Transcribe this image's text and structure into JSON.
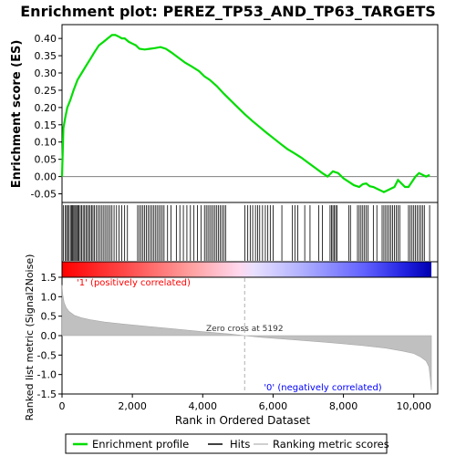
{
  "chart_data": {
    "type": "line",
    "title": "Enrichment plot: PEREZ_TP53_AND_TP63_TARGETS",
    "top_panel": {
      "ylabel": "Enrichment score (ES)",
      "ylim": [
        -0.075,
        0.44
      ],
      "yticks": [
        -0.05,
        0.0,
        0.05,
        0.1,
        0.15,
        0.2,
        0.25,
        0.3,
        0.35,
        0.4
      ],
      "ytick_labels": [
        "-0.05",
        "0.00",
        "0.05",
        "0.10",
        "0.15",
        "0.20",
        "0.25",
        "0.30",
        "0.35",
        "0.40"
      ],
      "series": [
        {
          "name": "Enrichment profile",
          "color": "#00dd00",
          "x": [
            0,
            40,
            90,
            150,
            230,
            330,
            440,
            560,
            680,
            800,
            920,
            1050,
            1180,
            1300,
            1420,
            1520,
            1620,
            1700,
            1780,
            1900,
            2000,
            2100,
            2200,
            2350,
            2500,
            2650,
            2800,
            2950,
            3100,
            3300,
            3500,
            3700,
            3900,
            4050,
            4200,
            4400,
            4600,
            4800,
            5000,
            5200,
            5400,
            5600,
            5800,
            6000,
            6200,
            6400,
            6600,
            6800,
            7000,
            7200,
            7400,
            7550,
            7700,
            7850,
            8000,
            8150,
            8300,
            8450,
            8550,
            8650,
            8750,
            8850,
            8950,
            9050,
            9150,
            9250,
            9350,
            9450,
            9550,
            9650,
            9750,
            9850,
            9950,
            10050,
            10150,
            10250,
            10350,
            10450
          ],
          "y": [
            0.0,
            0.14,
            0.17,
            0.2,
            0.22,
            0.25,
            0.28,
            0.3,
            0.32,
            0.34,
            0.36,
            0.38,
            0.39,
            0.4,
            0.41,
            0.41,
            0.405,
            0.4,
            0.4,
            0.39,
            0.385,
            0.38,
            0.37,
            0.368,
            0.37,
            0.372,
            0.375,
            0.37,
            0.36,
            0.345,
            0.33,
            0.318,
            0.305,
            0.29,
            0.28,
            0.262,
            0.24,
            0.22,
            0.2,
            0.18,
            0.162,
            0.145,
            0.128,
            0.112,
            0.096,
            0.08,
            0.068,
            0.055,
            0.04,
            0.025,
            0.01,
            0.0,
            0.015,
            0.01,
            -0.005,
            -0.015,
            -0.025,
            -0.03,
            -0.022,
            -0.02,
            -0.028,
            -0.03,
            -0.035,
            -0.04,
            -0.045,
            -0.04,
            -0.035,
            -0.03,
            -0.01,
            -0.02,
            -0.03,
            -0.03,
            -0.015,
            0.0,
            0.01,
            0.005,
            0.0,
            0.005
          ]
        }
      ],
      "baseline_y": 0.0
    },
    "hits": [
      40,
      90,
      130,
      160,
      200,
      240,
      270,
      300,
      330,
      360,
      390,
      420,
      450,
      480,
      520,
      560,
      600,
      640,
      680,
      720,
      760,
      800,
      840,
      880,
      920,
      970,
      1020,
      1070,
      1120,
      1170,
      1220,
      1270,
      1320,
      1370,
      1420,
      1480,
      1550,
      1620,
      1700,
      1780,
      1860,
      2150,
      2200,
      2250,
      2300,
      2350,
      2400,
      2450,
      2500,
      2550,
      2600,
      2650,
      2700,
      2750,
      2800,
      2850,
      2900,
      3000,
      3100,
      3250,
      3350,
      3450,
      3550,
      3650,
      3750,
      3850,
      3950,
      4050,
      4100,
      4150,
      4200,
      4250,
      4300,
      4350,
      4400,
      4450,
      4500,
      4550,
      4600,
      4650,
      5200,
      5280,
      5350,
      5420,
      5500,
      5560,
      5620,
      5700,
      5780,
      5850,
      5920,
      6000,
      6250,
      6550,
      6620,
      6700,
      6900,
      7050,
      7300,
      7400,
      7620,
      7660,
      7700,
      7740,
      7780,
      7820,
      8150,
      8200,
      8400,
      8450,
      8500,
      8550,
      8600,
      8650,
      8700,
      8850,
      8950,
      9100,
      9150,
      9200,
      9250,
      9300,
      9350,
      9400,
      9450,
      9500,
      9550,
      9600,
      9850,
      9900,
      9950,
      10000,
      10050,
      10100,
      10150,
      10200,
      10250,
      10300,
      10450
    ],
    "heatmap": {
      "labels": [
        "'1' (positively correlated)",
        "'0' (negatively correlated)"
      ],
      "label_colors": [
        "#ff0000",
        "#0000ff"
      ]
    },
    "bottom_panel": {
      "ylabel": "Ranked list metric (Signal2Noise)",
      "xlabel": "Rank in Ordered Dataset",
      "ylim": [
        -1.5,
        1.5
      ],
      "yticks": [
        -1.5,
        -1.0,
        -0.5,
        0.0,
        0.5,
        1.0,
        1.5
      ],
      "ytick_labels": [
        "-1.5",
        "-1.0",
        "-0.5",
        "0.0",
        "0.5",
        "1.0",
        "1.5"
      ],
      "xlim": [
        0,
        10500
      ],
      "xticks": [
        0,
        2000,
        4000,
        6000,
        8000,
        10000
      ],
      "xtick_labels": [
        "0",
        "2,000",
        "4,000",
        "6,000",
        "8,000",
        "10,000"
      ],
      "metric_x": [
        0,
        20,
        60,
        120,
        200,
        350,
        550,
        800,
        1200,
        1800,
        2500,
        3200,
        4000,
        4800,
        5192,
        5600,
        6500,
        7500,
        8500,
        9200,
        9700,
        10000,
        10200,
        10350,
        10430,
        10470,
        10500
      ],
      "metric_y": [
        1.3,
        1.05,
        0.85,
        0.72,
        0.62,
        0.52,
        0.46,
        0.41,
        0.35,
        0.29,
        0.23,
        0.17,
        0.1,
        0.04,
        0.0,
        -0.04,
        -0.1,
        -0.17,
        -0.25,
        -0.32,
        -0.4,
        -0.46,
        -0.55,
        -0.65,
        -0.8,
        -1.1,
        -1.4
      ],
      "fill_color": "#c0c0c0",
      "zero_cross_rank": 5192,
      "annotation": "Zero cross at 5192"
    },
    "legend": {
      "position": "bottom",
      "items": [
        {
          "label": "Enrichment profile",
          "color": "#00dd00"
        },
        {
          "label": "Hits",
          "color": "#000000"
        },
        {
          "label": "Ranking metric scores",
          "color": "#c0c0c0"
        }
      ]
    }
  }
}
